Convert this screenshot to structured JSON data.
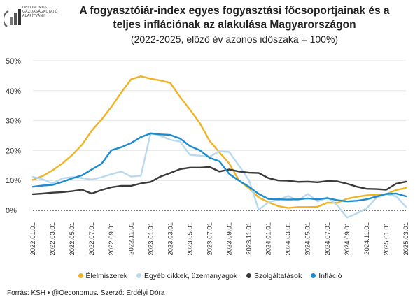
{
  "logo": {
    "line1": "OECONOMUS",
    "line2": "GAZDASÁGKUTATÓ",
    "line3": "ALAPÍTVÁNY",
    "color": "#555555"
  },
  "title": "A fogyasztóiár-index egyes fogyasztási főcsoportjainak és a teljes inflációnak az alakulása Magyarországon",
  "subtitle": "(2022-2025, előző év azonos időszaka = 100%)",
  "source": "Forrás: KSH • @Oeconomus. Szerző: Erdélyi Dóra",
  "chart_data": {
    "type": "line",
    "y_ticks": [
      "0%",
      "10%",
      "20%",
      "30%",
      "40%",
      "50%"
    ],
    "ylim": [
      0,
      50
    ],
    "x": [
      "2022.01",
      "2022.02",
      "2022.03",
      "2022.04",
      "2022.05",
      "2022.06",
      "2022.07",
      "2022.08",
      "2022.09",
      "2022.10",
      "2022.11",
      "2022.12",
      "2023.01",
      "2023.02",
      "2023.03",
      "2023.04",
      "2023.05",
      "2023.06",
      "2023.07",
      "2023.08",
      "2023.09",
      "2023.10",
      "2023.11",
      "2023.12",
      "2024.01",
      "2024.02",
      "2024.03",
      "2024.04",
      "2024.05",
      "2024.06",
      "2024.07",
      "2024.08",
      "2024.09",
      "2024.10",
      "2024.11",
      "2024.12",
      "2025.01",
      "2025.02",
      "2025.03"
    ],
    "x_tick_labels": [
      "2022.01.01",
      "2022.03.01",
      "2022.05.01",
      "2022.07.01",
      "2022.09.01",
      "2022.11.01",
      "2023.01.01",
      "2023.03.01",
      "2023.05.01",
      "2023.07.01",
      "2023.09.01",
      "2023.11.01",
      "2024.01.01",
      "2024.03.01",
      "2024.05.01",
      "2024.07.01",
      "2024.09.01",
      "2024.11.01",
      "2025.01.01",
      "2025.03.01"
    ],
    "series": [
      {
        "name": "Élelmiszerek",
        "color": "#f0b323",
        "values": [
          10.2,
          11.5,
          13.4,
          15.7,
          18.5,
          21.9,
          26.7,
          30.4,
          34.6,
          39.4,
          43.8,
          44.8,
          44.0,
          43.4,
          42.6,
          37.9,
          33.7,
          29.2,
          23.2,
          19.4,
          15.7,
          9.9,
          7.4,
          4.3,
          2.7,
          1.4,
          0.8,
          1.1,
          1.1,
          1.2,
          2.6,
          2.5,
          3.9,
          4.5,
          5.0,
          5.2,
          5.4,
          6.8,
          7.5
        ]
      },
      {
        "name": "Egyéb cikkek, üzemanyagok",
        "color": "#b8d9ee",
        "values": [
          11.2,
          10.4,
          9.0,
          10.7,
          11.1,
          10.8,
          10.3,
          11.1,
          12.1,
          13.0,
          11.3,
          11.6,
          25.9,
          24.9,
          23.6,
          23.0,
          18.5,
          18.3,
          17.9,
          19.8,
          19.5,
          14.9,
          10.1,
          0.2,
          2.7,
          3.5,
          4.8,
          3.2,
          5.5,
          3.0,
          4.3,
          1.7,
          -2.4,
          -1.0,
          0.7,
          4.2,
          5.4,
          4.7,
          1.2
        ]
      },
      {
        "name": "Szolgáltatások",
        "color": "#3a3a3a",
        "values": [
          5.4,
          5.6,
          5.9,
          6.1,
          6.4,
          6.9,
          5.6,
          6.8,
          7.7,
          8.2,
          8.2,
          9.0,
          9.5,
          11.3,
          12.5,
          13.8,
          14.3,
          14.3,
          14.5,
          13.0,
          13.7,
          13.0,
          12.6,
          12.5,
          10.8,
          10.0,
          9.9,
          9.5,
          9.6,
          9.4,
          9.8,
          9.7,
          8.9,
          7.9,
          7.2,
          7.1,
          6.9,
          8.9,
          9.6
        ]
      },
      {
        "name": "Infláció",
        "color": "#1a8ccf",
        "values": [
          7.9,
          8.3,
          8.5,
          9.5,
          10.7,
          11.7,
          13.7,
          15.6,
          20.1,
          21.1,
          22.5,
          24.5,
          25.7,
          25.4,
          25.2,
          24.0,
          21.5,
          20.1,
          17.6,
          16.4,
          12.2,
          9.9,
          7.9,
          5.5,
          3.8,
          3.7,
          3.6,
          3.7,
          4.0,
          3.7,
          4.1,
          3.4,
          3.0,
          3.2,
          3.7,
          4.6,
          5.5,
          5.6,
          4.7
        ]
      }
    ]
  }
}
